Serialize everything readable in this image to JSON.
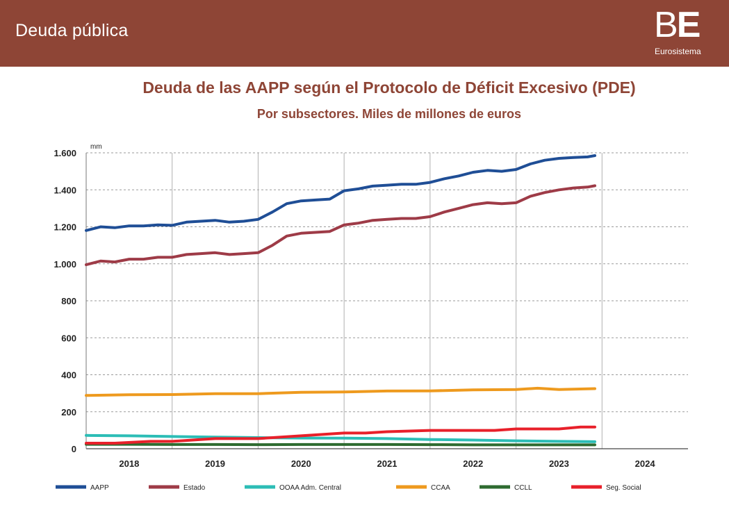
{
  "header": {
    "title": "Deuda pública",
    "logo_text_b": "B",
    "logo_text_e": "E",
    "logo_sub": "Eurosistema"
  },
  "chart_data": {
    "type": "line",
    "title": "Deuda de las AAPP según el Protocolo de Déficit Excesivo (PDE)",
    "subtitle": "Por subsectores. Miles de millones de euros",
    "unit_label": "mm",
    "ylim": [
      0,
      1600
    ],
    "yticks": [
      0,
      200,
      400,
      600,
      800,
      1000,
      1200,
      1400,
      1600
    ],
    "ytick_labels": [
      "0",
      "200",
      "400",
      "600",
      "800",
      "1.000",
      "1.200",
      "1.400",
      "1.600"
    ],
    "xlim": [
      2018,
      2025
    ],
    "years": [
      "2018",
      "2019",
      "2020",
      "2021",
      "2022",
      "2023",
      "2024"
    ],
    "grid": true,
    "legend_position": "bottom",
    "series": [
      {
        "name": "AAPP",
        "color": "#1f4e96",
        "x": [
          2018.0,
          2018.167,
          2018.333,
          2018.5,
          2018.667,
          2018.833,
          2019.0,
          2019.167,
          2019.333,
          2019.5,
          2019.667,
          2019.833,
          2020.0,
          2020.167,
          2020.333,
          2020.5,
          2020.667,
          2020.833,
          2021.0,
          2021.167,
          2021.333,
          2021.5,
          2021.667,
          2021.833,
          2022.0,
          2022.167,
          2022.333,
          2022.5,
          2022.667,
          2022.833,
          2023.0,
          2023.167,
          2023.333,
          2023.5,
          2023.667,
          2023.833,
          2023.917
        ],
        "y": [
          1180,
          1200,
          1195,
          1205,
          1205,
          1210,
          1208,
          1225,
          1230,
          1235,
          1225,
          1230,
          1240,
          1280,
          1325,
          1340,
          1345,
          1350,
          1395,
          1405,
          1420,
          1425,
          1430,
          1430,
          1440,
          1460,
          1475,
          1495,
          1505,
          1500,
          1510,
          1540,
          1560,
          1570,
          1575,
          1578,
          1585
        ]
      },
      {
        "name": "Estado",
        "color": "#9e3b47",
        "x": [
          2018.0,
          2018.167,
          2018.333,
          2018.5,
          2018.667,
          2018.833,
          2019.0,
          2019.167,
          2019.333,
          2019.5,
          2019.667,
          2019.833,
          2020.0,
          2020.167,
          2020.333,
          2020.5,
          2020.667,
          2020.833,
          2021.0,
          2021.167,
          2021.333,
          2021.5,
          2021.667,
          2021.833,
          2022.0,
          2022.167,
          2022.333,
          2022.5,
          2022.667,
          2022.833,
          2023.0,
          2023.167,
          2023.333,
          2023.5,
          2023.667,
          2023.833,
          2023.917
        ],
        "y": [
          995,
          1015,
          1010,
          1025,
          1025,
          1035,
          1035,
          1050,
          1055,
          1060,
          1050,
          1055,
          1060,
          1100,
          1150,
          1165,
          1170,
          1175,
          1210,
          1220,
          1235,
          1240,
          1245,
          1245,
          1255,
          1280,
          1300,
          1320,
          1330,
          1325,
          1330,
          1365,
          1385,
          1400,
          1410,
          1415,
          1422
        ]
      },
      {
        "name": "OOAA Adm. Central",
        "color": "#2cbdb6",
        "x": [
          2018.0,
          2018.5,
          2019.0,
          2019.5,
          2020.0,
          2020.5,
          2021.0,
          2021.5,
          2022.0,
          2022.5,
          2023.0,
          2023.5,
          2023.917
        ],
        "y": [
          72,
          70,
          66,
          63,
          60,
          58,
          57,
          55,
          50,
          47,
          43,
          40,
          38
        ]
      },
      {
        "name": "CCAA",
        "color": "#ee9a1e",
        "x": [
          2018.0,
          2018.5,
          2019.0,
          2019.5,
          2020.0,
          2020.5,
          2021.0,
          2021.5,
          2022.0,
          2022.5,
          2023.0,
          2023.25,
          2023.5,
          2023.917
        ],
        "y": [
          288,
          292,
          293,
          298,
          298,
          305,
          307,
          312,
          313,
          318,
          320,
          327,
          320,
          325
        ]
      },
      {
        "name": "CCLL",
        "color": "#2e6b30",
        "x": [
          2018.0,
          2018.5,
          2019.0,
          2019.5,
          2020.0,
          2020.5,
          2021.0,
          2021.5,
          2022.0,
          2022.5,
          2023.0,
          2023.5,
          2023.917
        ],
        "y": [
          24,
          24,
          23,
          23,
          22,
          23,
          23,
          23,
          22,
          21,
          21,
          21,
          21
        ]
      },
      {
        "name": "Seg. Social",
        "color": "#e8202a",
        "x": [
          2018.0,
          2018.333,
          2018.75,
          2019.0,
          2019.5,
          2020.0,
          2020.5,
          2021.0,
          2021.25,
          2021.5,
          2022.0,
          2022.333,
          2022.75,
          2023.0,
          2023.5,
          2023.75,
          2023.917
        ],
        "y": [
          30,
          30,
          40,
          40,
          55,
          55,
          70,
          85,
          85,
          92,
          99,
          99,
          99,
          107,
          107,
          117,
          117
        ]
      }
    ]
  }
}
